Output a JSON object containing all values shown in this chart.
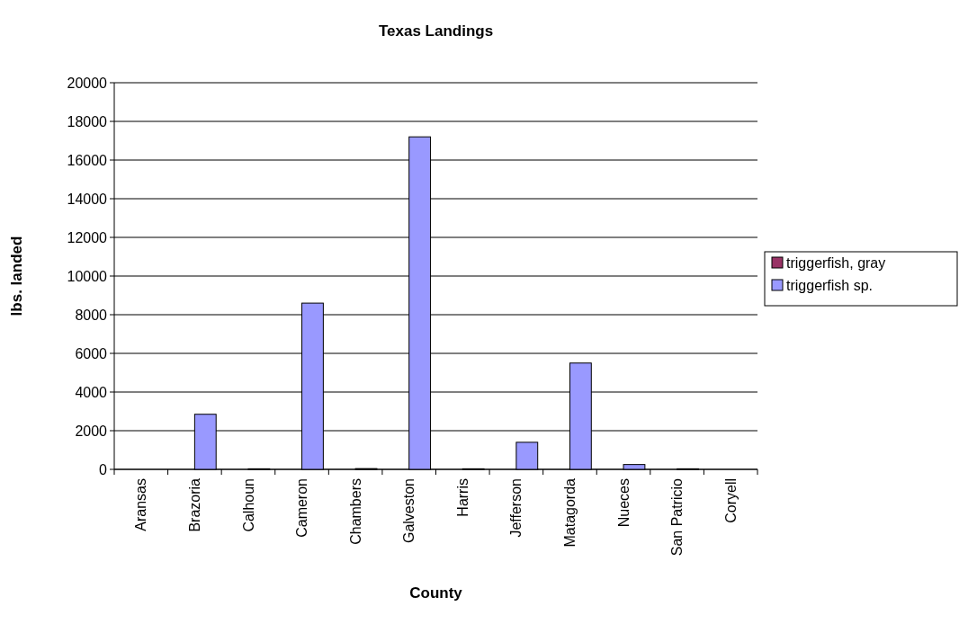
{
  "chart_data": {
    "type": "bar",
    "title": "Texas Landings",
    "xlabel": "County",
    "ylabel": "lbs. landed",
    "categories": [
      "Aransas",
      "Brazoria",
      "Calhoun",
      "Cameron",
      "Chambers",
      "Galveston",
      "Harris",
      "Jefferson",
      "Matagorda",
      "Nueces",
      "San Patricio",
      "Coryell"
    ],
    "series": [
      {
        "name": "triggerfish, gray",
        "color": "#993366",
        "values": [
          0,
          0,
          0,
          0,
          0,
          0,
          0,
          0,
          0,
          0,
          0,
          0
        ]
      },
      {
        "name": "triggerfish sp.",
        "color": "#9999ff",
        "values": [
          0,
          2850,
          30,
          8600,
          40,
          17200,
          30,
          1400,
          5500,
          250,
          30,
          0
        ]
      }
    ],
    "ylim": [
      0,
      20000
    ],
    "yticks": [
      0,
      2000,
      4000,
      6000,
      8000,
      10000,
      12000,
      14000,
      16000,
      18000,
      20000
    ],
    "grid": "y",
    "legend": "right"
  }
}
